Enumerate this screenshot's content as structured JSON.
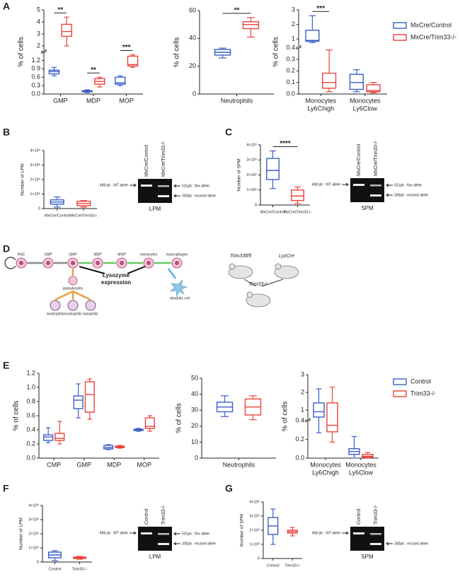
{
  "panels": [
    "A",
    "B",
    "C",
    "D",
    "E",
    "F",
    "G"
  ],
  "chart_data": [
    {
      "type": "box",
      "ylabel": "% of cells",
      "categories": [
        "GMP",
        "MDP",
        "MOP"
      ],
      "segments": [
        {
          "ylim": [
            0,
            1.5
          ],
          "yticks": [
            {
              "value": 0,
              "label": "0.0"
            },
            0.3,
            0.6,
            0.9,
            1.2
          ]
        },
        {
          "ylim": [
            1.5,
            5
          ],
          "yticks": [
            2,
            3,
            4,
            5
          ]
        }
      ],
      "series": [
        {
          "name": "MxCre/Control",
          "color": "#3a5fc8",
          "values": [
            {
              "min": 0.65,
              "q1": 0.72,
              "median": 0.8,
              "q3": 0.85,
              "max": 0.95
            },
            {
              "min": 0.05,
              "q1": 0.08,
              "median": 0.1,
              "q3": 0.12,
              "max": 0.15
            },
            {
              "min": 0.3,
              "q1": 0.35,
              "median": 0.4,
              "q3": 0.6,
              "max": 0.65
            }
          ]
        },
        {
          "name": "MxCre/Trim33-/-",
          "color": "#e8453c",
          "values": [
            {
              "min": 2.0,
              "q1": 2.8,
              "median": 3.2,
              "q3": 3.8,
              "max": 4.4
            },
            {
              "min": 0.25,
              "q1": 0.35,
              "median": 0.45,
              "q3": 0.55,
              "max": 0.6
            },
            {
              "min": 0.95,
              "q1": 1.0,
              "median": 1.05,
              "q3": 1.35,
              "max": 1.4
            }
          ]
        }
      ],
      "annotations": [
        {
          "text": "**",
          "categories": [
            0
          ]
        },
        {
          "text": "**",
          "categories": [
            1
          ]
        },
        {
          "text": "***",
          "categories": [
            2
          ]
        }
      ]
    },
    {
      "type": "box",
      "ylabel": "% of cells",
      "categories": [
        "Neutrophils"
      ],
      "ylim": [
        0,
        60
      ],
      "yticks": [
        0,
        20,
        40,
        60
      ],
      "series": [
        {
          "name": "MxCre/Control",
          "color": "#3a5fc8",
          "values": [
            {
              "min": 26,
              "q1": 28,
              "median": 30,
              "q3": 32,
              "max": 33
            }
          ]
        },
        {
          "name": "MxCre/Trim33-/-",
          "color": "#e8453c",
          "values": [
            {
              "min": 41,
              "q1": 47,
              "median": 50,
              "q3": 52,
              "max": 55
            }
          ]
        }
      ],
      "annotations": [
        {
          "text": "**",
          "categories": [
            0
          ]
        }
      ]
    },
    {
      "type": "box",
      "ylabel": "% of cells",
      "categories": [
        [
          "Monocytes",
          "Ly6Chigh"
        ],
        [
          "Monocytes",
          "Ly6Clow"
        ]
      ],
      "segments": [
        {
          "ylim": [
            0,
            0.4
          ],
          "yticks": [
            {
              "value": 0,
              "label": "0.0"
            },
            0.1,
            0.2,
            0.3,
            0.4
          ]
        },
        {
          "ylim": [
            0.4,
            3
          ],
          "yticks": [
            1,
            2,
            3
          ]
        }
      ],
      "legend": "right",
      "series": [
        {
          "name": "MxCre/Control",
          "color": "#3a5fc8",
          "values": [
            {
              "min": 0.75,
              "q1": 0.85,
              "median": 0.9,
              "q3": 1.6,
              "max": 2.6
            },
            {
              "min": 0.02,
              "q1": 0.04,
              "median": 0.1,
              "q3": 0.17,
              "max": 0.21
            }
          ]
        },
        {
          "name": "MxCre/Trim33-/-",
          "color": "#e8453c",
          "values": [
            {
              "min": 0.02,
              "q1": 0.05,
              "median": 0.1,
              "q3": 0.18,
              "max": 0.38
            },
            {
              "min": 0.01,
              "q1": 0.02,
              "median": 0.03,
              "q3": 0.08,
              "max": 0.1
            }
          ]
        }
      ],
      "annotations": [
        {
          "text": "***",
          "categories": [
            0
          ]
        }
      ]
    },
    {
      "type": "box",
      "ylabel": "Number of LPM",
      "categories": [
        "MxCre/Control",
        "MxCre/Trim33-/-"
      ],
      "colors": [
        "#3a5fc8",
        "#e8453c"
      ],
      "ylim": [
        0,
        4000000
      ],
      "yticks": [
        0,
        {
          "value": 1000000,
          "label": "1×10⁶"
        },
        {
          "value": 2000000,
          "label": "2×10⁶"
        },
        {
          "value": 3000000,
          "label": "3×10⁶"
        },
        {
          "value": 4000000,
          "label": "4×10⁶"
        }
      ],
      "values": [
        {
          "min": 100000,
          "q1": 300000,
          "median": 450000,
          "q3": 600000,
          "max": 800000
        },
        {
          "min": 100000,
          "q1": 200000,
          "median": 350000,
          "q3": 500000,
          "max": 550000
        }
      ]
    },
    {
      "type": "box",
      "ylabel": "Number of SPM",
      "categories": [
        "MxCre/Control",
        "MxCre/Trim33-/-"
      ],
      "colors": [
        "#3a5fc8",
        "#e8453c"
      ],
      "ylim": [
        0,
        4000000
      ],
      "yticks": [
        0,
        {
          "value": 1000000,
          "label": "1×10⁶"
        },
        {
          "value": 2000000,
          "label": "2×10⁶"
        },
        {
          "value": 3000000,
          "label": "3×10⁶"
        },
        {
          "value": 4000000,
          "label": "4×10⁶"
        }
      ],
      "values": [
        {
          "min": 1100000,
          "q1": 1700000,
          "median": 2300000,
          "q3": 3100000,
          "max": 3600000
        },
        {
          "min": 100000,
          "q1": 300000,
          "median": 600000,
          "q3": 1000000,
          "max": 1200000
        }
      ],
      "annotations": [
        {
          "text": "****",
          "categories": [
            0,
            1
          ]
        }
      ]
    },
    {
      "type": "box",
      "ylabel": "% of cells",
      "categories": [
        "CMP",
        "GMP",
        "MDP",
        "MOP"
      ],
      "ylim": [
        0,
        1.2
      ],
      "yticks": [
        {
          "value": 0,
          "label": "0.0"
        },
        0.2,
        0.4,
        0.6,
        0.8,
        {
          "value": 1,
          "label": "1.0"
        },
        1.2
      ],
      "legend": "right",
      "series": [
        {
          "name": "Control",
          "color": "#3a5fc8",
          "values": [
            {
              "min": 0.22,
              "q1": 0.25,
              "median": 0.3,
              "q3": 0.33,
              "max": 0.43
            },
            {
              "min": 0.57,
              "q1": 0.7,
              "median": 0.82,
              "q3": 0.88,
              "max": 1.05
            },
            {
              "min": 0.12,
              "q1": 0.13,
              "median": 0.15,
              "q3": 0.18,
              "max": 0.19
            },
            {
              "min": 0.38,
              "q1": 0.39,
              "median": 0.4,
              "q3": 0.41,
              "max": 0.42
            }
          ]
        },
        {
          "name": "Trim33-/-",
          "color": "#e8453c",
          "values": [
            {
              "min": 0.2,
              "q1": 0.25,
              "median": 0.28,
              "q3": 0.35,
              "max": 0.52
            },
            {
              "min": 0.55,
              "q1": 0.65,
              "median": 0.9,
              "q3": 1.08,
              "max": 1.12
            },
            {
              "min": 0.14,
              "q1": 0.15,
              "median": 0.16,
              "q3": 0.17,
              "max": 0.18
            },
            {
              "min": 0.38,
              "q1": 0.42,
              "median": 0.45,
              "q3": 0.57,
              "max": 0.6
            }
          ]
        }
      ]
    },
    {
      "type": "box",
      "ylabel": "% of cells",
      "categories": [
        "Neutrophils"
      ],
      "ylim": [
        0,
        50
      ],
      "yticks": [
        0,
        10,
        20,
        30,
        40,
        50
      ],
      "series": [
        {
          "name": "Control",
          "color": "#3a5fc8",
          "values": [
            {
              "min": 26,
              "q1": 29,
              "median": 32,
              "q3": 35,
              "max": 39
            }
          ]
        },
        {
          "name": "Trim33-/-",
          "color": "#e8453c",
          "values": [
            {
              "min": 24,
              "q1": 27,
              "median": 32,
              "q3": 37,
              "max": 39
            }
          ]
        }
      ]
    },
    {
      "type": "box",
      "ylabel": "% of cells",
      "categories": [
        [
          "Monocytes",
          "Ly6Chigh"
        ],
        [
          "Monocytes",
          "Ly6Clow"
        ]
      ],
      "segments": [
        {
          "ylim": [
            0,
            0.4
          ],
          "yticks": [
            {
              "value": 0,
              "label": "0.0"
            },
            0.2,
            0.4
          ]
        },
        {
          "ylim": [
            0.4,
            3
          ],
          "yticks": [
            1,
            2,
            3
          ]
        }
      ],
      "series": [
        {
          "name": "Control",
          "color": "#3a5fc8",
          "values": [
            {
              "min": 0.27,
              "q1": 0.6,
              "median": 0.9,
              "q3": 1.4,
              "max": 2.2
            },
            {
              "min": 0,
              "q1": 0.04,
              "median": 0.07,
              "q3": 0.1,
              "max": 0.23
            }
          ]
        },
        {
          "name": "Trim33-/-",
          "color": "#e8453c",
          "values": [
            {
              "min": 0.17,
              "q1": 0.28,
              "median": 0.35,
              "q3": 1.4,
              "max": 2.3
            },
            {
              "min": 0,
              "q1": 0.01,
              "median": 0.02,
              "q3": 0.04,
              "max": 0.06
            }
          ]
        }
      ]
    },
    {
      "type": "box",
      "ylabel": "Number of LPM",
      "categories": [
        "Control",
        "Trim33-/-"
      ],
      "colors": [
        "#3a5fc8",
        "#e8453c"
      ],
      "ylim": [
        0,
        4000000
      ],
      "yticks": [
        0,
        {
          "value": 1000000,
          "label": "1×10⁶"
        },
        {
          "value": 2000000,
          "label": "2×10⁶"
        },
        {
          "value": 3000000,
          "label": "3×10⁶"
        },
        {
          "value": 4000000,
          "label": "4×10⁶"
        }
      ],
      "values": [
        {
          "min": 100000,
          "q1": 300000,
          "median": 500000,
          "q3": 700000,
          "max": 800000
        },
        {
          "min": 200000,
          "q1": 250000,
          "median": 300000,
          "q3": 350000,
          "max": 400000
        }
      ]
    },
    {
      "type": "box",
      "ylabel": "Number of SPM",
      "categories": [
        "Control",
        "Trim33-/-"
      ],
      "colors": [
        "#3a5fc8",
        "#e8453c"
      ],
      "ylim": [
        0,
        4000000
      ],
      "yticks": [
        0,
        {
          "value": 1000000,
          "label": "1×10⁶"
        },
        {
          "value": 2000000,
          "label": "2×10⁶"
        },
        {
          "value": 3000000,
          "label": "3×10⁶"
        },
        {
          "value": 4000000,
          "label": "4×10⁶"
        }
      ],
      "values": [
        {
          "min": 1000000,
          "q1": 1700000,
          "median": 2300000,
          "q3": 2900000,
          "max": 3500000
        },
        {
          "min": 1600000,
          "q1": 1800000,
          "median": 1900000,
          "q3": 2000000,
          "max": 2200000
        }
      ]
    }
  ],
  "gels": [
    {
      "lanes": [
        "MxCre/Control",
        "MxCre/Trim33-/-"
      ],
      "left": "498 pb : WT allele",
      "right": [
        "531pb : flox allele",
        "330pb : excised allele"
      ],
      "caption": "LPM"
    },
    {
      "lanes": [
        "MxCre/Control",
        "MxCre/Trim33-/-"
      ],
      "left": "498 pb : WT allele",
      "right": [
        "531pb : flox allele",
        "330pb : excised allele"
      ],
      "caption": "SPM"
    },
    {
      "lanes": [
        "Control",
        "Trim33-/-"
      ],
      "left": "498 pb : WT allele",
      "right": [
        "531pb : flox allele",
        "330pb : excised allele"
      ],
      "caption": "LPM"
    },
    {
      "lanes": [
        "Control",
        "Trim33-/-"
      ],
      "left": "498 pb : WT allele",
      "right": [
        "330pb : excised allele"
      ],
      "caption": "SPM"
    }
  ],
  "diagram": {
    "cells": [
      "HSC",
      "CMP",
      "GMP",
      "MDP",
      "MOP",
      "monocytes",
      "macrophages"
    ],
    "granulocytes": "granulocytes",
    "subtypes": [
      "neutrophils",
      "eosinophils",
      "basophils"
    ],
    "dendritic": "dendritic cell",
    "lysozyme": [
      "Lysozyme",
      "expression"
    ],
    "mice": [
      "Trim33fl/fl",
      "LyzCre",
      "Trim33-/-"
    ]
  }
}
